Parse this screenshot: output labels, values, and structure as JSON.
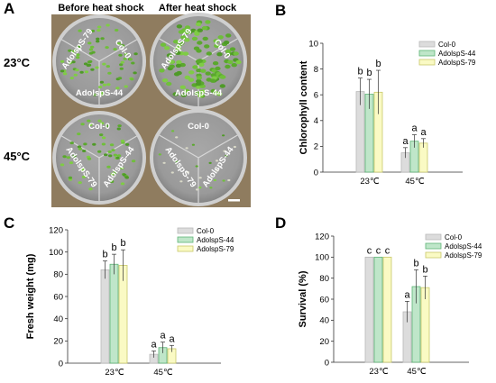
{
  "panel_a": {
    "letter": "A",
    "headers": [
      "Before heat shock",
      "After heat shock"
    ],
    "row_labels": [
      "23°C",
      "45°C"
    ],
    "plates": [
      {
        "labels": [
          "AdolspS-79",
          "Col-0",
          "AdolspS-44"
        ]
      },
      {
        "labels": [
          "AdolspS-79",
          "Col-0",
          "AdolspS-44"
        ]
      },
      {
        "labels": [
          "Col-0",
          "AdolspS-44",
          "AdolspS-79"
        ]
      },
      {
        "labels": [
          "Col-0",
          "AdolspS-44",
          "AdolspS-79"
        ]
      }
    ]
  },
  "colors": {
    "col0": "#dcdcdc",
    "ado44": "#bfe6c9",
    "ado79": "#fafac4",
    "background_photo": "#8f7c5f"
  },
  "chart_data": [
    {
      "type": "bar",
      "letter": "B",
      "categories": [
        "23℃",
        "45℃"
      ],
      "series": [
        {
          "name": "Col-0",
          "values": [
            6.25,
            1.5
          ],
          "errors": [
            1.05,
            0.4
          ],
          "letters": [
            "b",
            "a"
          ]
        },
        {
          "name": "AdolspS-44",
          "values": [
            6.05,
            2.4
          ],
          "errors": [
            1.15,
            0.5
          ],
          "letters": [
            "b",
            "a"
          ]
        },
        {
          "name": "AdolspS-79",
          "values": [
            6.2,
            2.25
          ],
          "errors": [
            1.7,
            0.35
          ],
          "letters": [
            "b",
            "a"
          ]
        }
      ],
      "ylabel": "Chlorophyll content",
      "ylim": [
        0,
        10
      ],
      "yticks": [
        0,
        2,
        4,
        6,
        8,
        10
      ],
      "legend": "top-right"
    },
    {
      "type": "bar",
      "letter": "C",
      "categories": [
        "23℃",
        "45℃"
      ],
      "series": [
        {
          "name": "Col-0",
          "values": [
            84,
            8
          ],
          "errors": [
            8,
            3
          ],
          "letters": [
            "b",
            "a"
          ]
        },
        {
          "name": "AdolspS-44",
          "values": [
            89,
            14
          ],
          "errors": [
            9,
            5
          ],
          "letters": [
            "b",
            "a"
          ]
        },
        {
          "name": "AdolspS-79",
          "values": [
            88,
            13
          ],
          "errors": [
            14,
            3
          ],
          "letters": [
            "b",
            "a"
          ]
        }
      ],
      "ylabel": "Fresh weight (mg)",
      "ylim": [
        0,
        120
      ],
      "yticks": [
        0,
        20,
        40,
        60,
        80,
        100,
        120
      ],
      "legend": "top-right"
    },
    {
      "type": "bar",
      "letter": "D",
      "categories": [
        "23℃",
        "45℃"
      ],
      "series": [
        {
          "name": "Col-0",
          "values": [
            100,
            48
          ],
          "errors": [
            0,
            10
          ],
          "letters": [
            "c",
            "a"
          ]
        },
        {
          "name": "AdolspS-44",
          "values": [
            100,
            72
          ],
          "errors": [
            0,
            16
          ],
          "letters": [
            "c",
            "b"
          ]
        },
        {
          "name": "AdolspS-79",
          "values": [
            100,
            71
          ],
          "errors": [
            0,
            11
          ],
          "letters": [
            "c",
            "b"
          ]
        }
      ],
      "ylabel": "Survival (%)",
      "ylim": [
        0,
        120
      ],
      "yticks": [
        0,
        20,
        40,
        60,
        80,
        100,
        120
      ],
      "legend": "top-right"
    }
  ]
}
